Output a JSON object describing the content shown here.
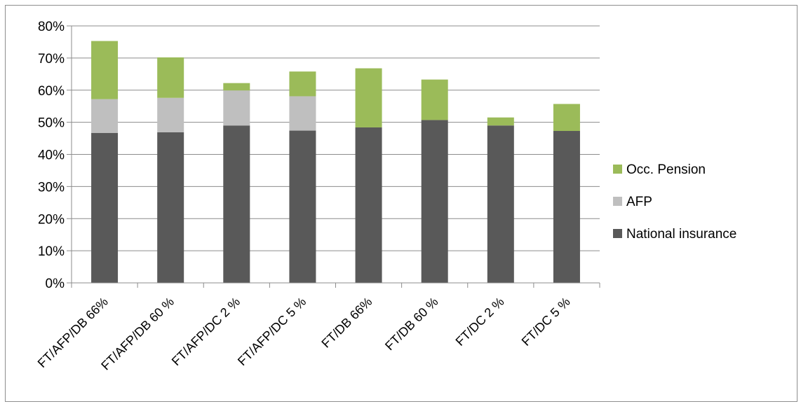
{
  "chart_data": {
    "type": "bar",
    "stacked": true,
    "categories": [
      "FT/AFP/DB 66%",
      "FT/AFP/DB 60 %",
      "FT/AFP/DC 2 %",
      "FT/AFP/DC 5 %",
      "FT/DB 66%",
      "FT/DB 60 %",
      "FT/DC 2 %",
      "FT/DC 5 %"
    ],
    "series": [
      {
        "name": "National insurance",
        "color": "#595959",
        "values": [
          0.467,
          0.469,
          0.49,
          0.474,
          0.484,
          0.507,
          0.49,
          0.473
        ]
      },
      {
        "name": "AFP",
        "color": "#bfbfbf",
        "values": [
          0.105,
          0.107,
          0.109,
          0.107,
          0.0,
          0.0,
          0.0,
          0.0
        ]
      },
      {
        "name": "Occ. Pension",
        "color": "#9bbb59",
        "values": [
          0.181,
          0.126,
          0.023,
          0.077,
          0.184,
          0.126,
          0.025,
          0.084
        ]
      }
    ],
    "y_ticks": [
      "0%",
      "10%",
      "20%",
      "30%",
      "40%",
      "50%",
      "60%",
      "70%",
      "80%"
    ],
    "ylim": [
      0,
      0.8
    ],
    "grid": true,
    "legend_position": "right",
    "legend_order": [
      "Occ. Pension",
      "AFP",
      "National insurance"
    ]
  }
}
